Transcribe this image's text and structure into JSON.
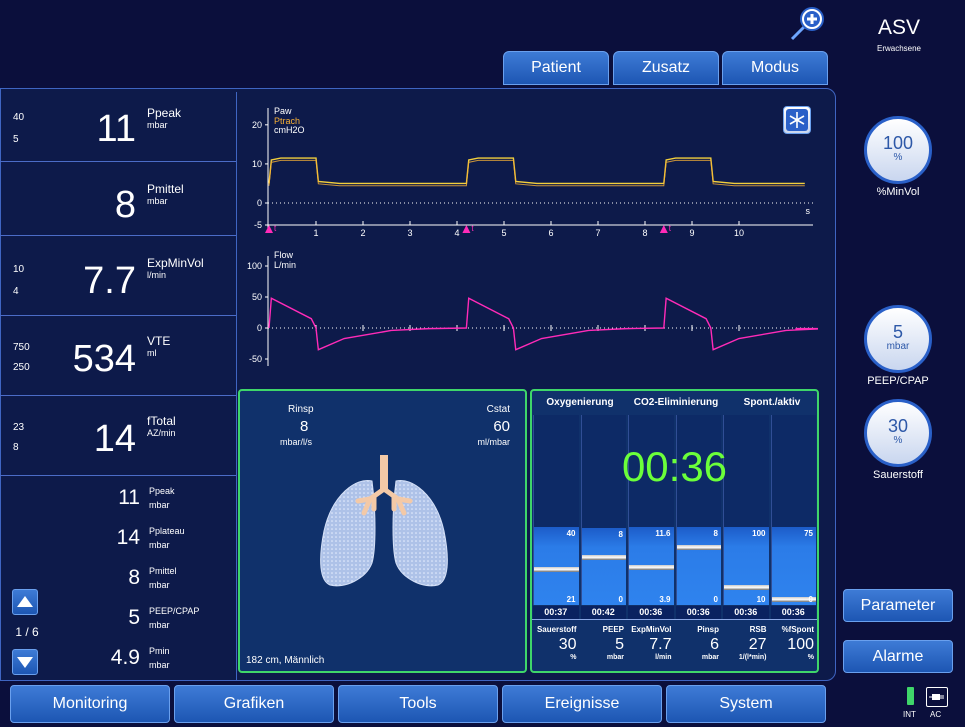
{
  "header": {
    "mode_title": "ASV",
    "mode_sub": "Erwachsene",
    "tabs": [
      "Patient",
      "Zusatz",
      "Modus"
    ]
  },
  "monitoring": [
    {
      "hi": "40",
      "lo": "5",
      "value": "11",
      "name": "Ppeak",
      "unit": "mbar"
    },
    {
      "hi": "",
      "lo": "",
      "value": "8",
      "name": "Pmittel",
      "unit": "mbar"
    },
    {
      "hi": "10",
      "lo": "4",
      "value": "7.7",
      "name": "ExpMinVol",
      "unit": "l/min"
    },
    {
      "hi": "750",
      "lo": "250",
      "value": "534",
      "name": "VTE",
      "unit": "ml"
    },
    {
      "hi": "23",
      "lo": "8",
      "value": "14",
      "name": "fTotal",
      "unit": "AZ/min"
    }
  ],
  "secondary": [
    {
      "value": "11",
      "name": "Ppeak",
      "unit": "mbar"
    },
    {
      "value": "14",
      "name": "Pplateau",
      "unit": "mbar"
    },
    {
      "value": "8",
      "name": "Pmittel",
      "unit": "mbar"
    },
    {
      "value": "5",
      "name": "PEEP/CPAP",
      "unit": "mbar"
    },
    {
      "value": "4.9",
      "name": "Pmin",
      "unit": "mbar"
    }
  ],
  "page_indicator": "1 / 6",
  "graphs": {
    "paw": {
      "label1": "Paw",
      "label2": "Ptrach",
      "label3": "cmH2O",
      "yticks": [
        "20",
        "10",
        "0",
        "-5"
      ],
      "xunit": "s",
      "xticks": [
        "1",
        "2",
        "3",
        "4",
        "5",
        "6",
        "7",
        "8",
        "9",
        "10"
      ],
      "trigger": "t"
    },
    "flow": {
      "label1": "Flow",
      "label2": "L/min",
      "yticks": [
        "100",
        "50",
        "0",
        "-50"
      ]
    }
  },
  "lung_panel": {
    "rinsp_label": "Rinsp",
    "rinsp_value": "8",
    "rinsp_unit": "mbar/l/s",
    "cstat_label": "Cstat",
    "cstat_value": "60",
    "cstat_unit": "ml/mbar",
    "patient": "182 cm, Männlich"
  },
  "asv_panel": {
    "headers": [
      "Oxygenierung",
      "CO2-Eliminierung",
      "Spont./aktiv"
    ],
    "timer": "00:36",
    "bars": [
      {
        "top": "40",
        "bottom": "21",
        "time": "00:37"
      },
      {
        "top": "8",
        "bottom": "0",
        "time": "00:42"
      },
      {
        "top": "11.6",
        "bottom": "3.9",
        "time": "00:36"
      },
      {
        "top": "8",
        "bottom": "0",
        "time": "00:36"
      },
      {
        "top": "100",
        "bottom": "10",
        "time": "00:36"
      },
      {
        "top": "75",
        "bottom": "0",
        "time": "00:36"
      }
    ],
    "values": [
      {
        "name": "Sauerstoff",
        "value": "30",
        "unit": "%"
      },
      {
        "name": "PEEP",
        "value": "5",
        "unit": "mbar"
      },
      {
        "name": "ExpMinVol",
        "value": "7.7",
        "unit": "l/min"
      },
      {
        "name": "Pinsp",
        "value": "6",
        "unit": "mbar"
      },
      {
        "name": "RSB",
        "value": "27",
        "unit": "1/(l*min)"
      },
      {
        "name": "%fSpont",
        "value": "100",
        "unit": "%"
      }
    ]
  },
  "knobs": [
    {
      "value": "100",
      "unit": "%",
      "label": "%MinVol"
    },
    {
      "value": "5",
      "unit": "mbar",
      "label": "PEEP/CPAP"
    },
    {
      "value": "30",
      "unit": "%",
      "label": "Sauerstoff"
    }
  ],
  "side_buttons": {
    "parameter": "Parameter",
    "alarme": "Alarme"
  },
  "bottom_tabs": [
    "Monitoring",
    "Grafiken",
    "Tools",
    "Ereignisse",
    "System"
  ],
  "power": {
    "int": "INT",
    "ac": "AC"
  },
  "colors": {
    "paw": "#f2cf3d",
    "ptrach": "#f7b035",
    "flow": "#ff2bb8",
    "frame_green": "#3fd66a",
    "timer_green": "#6bff3a",
    "accent_blue": "#2a60c8"
  }
}
